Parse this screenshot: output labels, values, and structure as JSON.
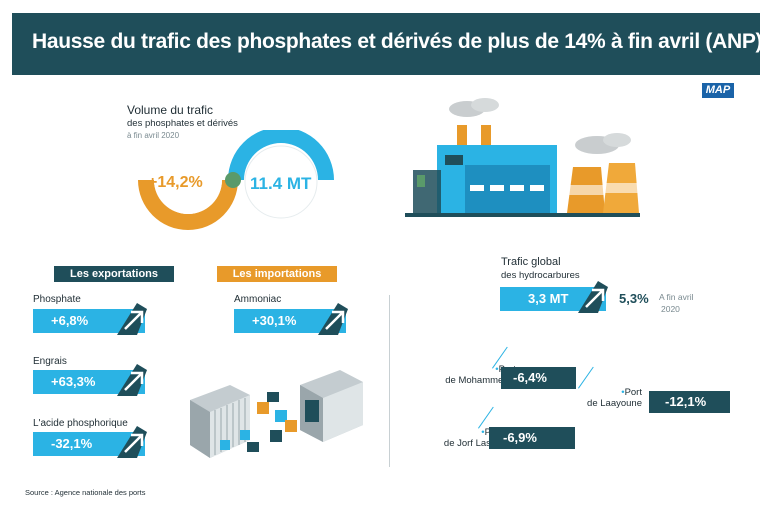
{
  "header": {
    "title": "Hausse du trafic des phosphates et dérivés de plus de 14% à fin avril (ANP)"
  },
  "logo": {
    "text": "MAP"
  },
  "volume": {
    "title": "Volume du trafic",
    "subtitle": "des phosphates et dérivés",
    "date": "à fin avril 2020",
    "growth": "+14,2%",
    "total": "11.4 MT"
  },
  "exports": {
    "header": "Les exportations",
    "items": [
      {
        "label": "Phosphate",
        "value": "+6,8%"
      },
      {
        "label": "Engrais",
        "value": "+63,3%"
      },
      {
        "label": "L'acide phosphorique",
        "value": "-32,1%"
      }
    ]
  },
  "imports": {
    "header": "Les importations",
    "items": [
      {
        "label": "Ammoniac",
        "value": "+30,1%"
      }
    ]
  },
  "hydrocarbons": {
    "title": "Trafic global",
    "subtitle": "des hydrocarbures",
    "volume": "3,3 MT",
    "growth": "5,3%",
    "date_line1": "A fin avril",
    "date_line2": "2020"
  },
  "ports": [
    {
      "line1": "Port",
      "line2": "de Mohammedia",
      "value": "-6,4%"
    },
    {
      "line1": "Port",
      "line2": "de Laayoune",
      "value": "-12,1%"
    },
    {
      "line1": "Port",
      "line2": "de Jorf Lasfar",
      "value": "-6,9%"
    }
  ],
  "source": "Source : Agence nationale des ports",
  "colors": {
    "teal": "#1f4e5a",
    "blue": "#2bb3e4",
    "orange": "#e89a2a"
  },
  "icons": [
    "up-arrow-icon",
    "factory-illustration",
    "shipping-containers-illustration"
  ]
}
